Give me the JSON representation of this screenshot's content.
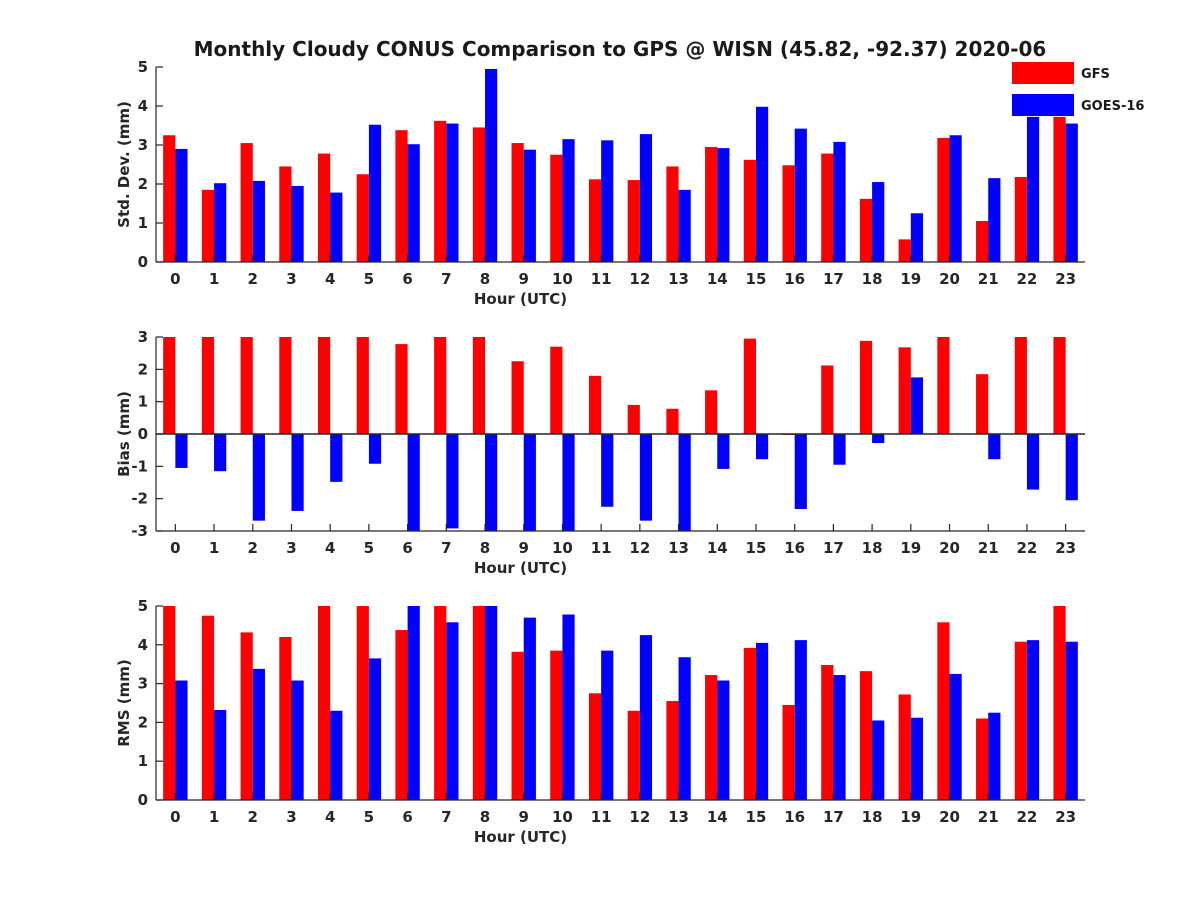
{
  "title": "Monthly Cloudy CONUS Comparison to GPS @ WISN (45.82, -92.37) 2020-06",
  "legend": [
    {
      "name": "GFS",
      "color": "#ff0000"
    },
    {
      "name": "GOES-16",
      "color": "#0000ff"
    }
  ],
  "chart_data": [
    {
      "type": "bar",
      "categories": [
        "0",
        "1",
        "2",
        "3",
        "4",
        "5",
        "6",
        "7",
        "8",
        "9",
        "10",
        "11",
        "12",
        "13",
        "14",
        "15",
        "16",
        "17",
        "18",
        "19",
        "20",
        "21",
        "22",
        "23"
      ],
      "xlabel": "Hour (UTC)",
      "ylabel": "Std. Dev. (mm)",
      "ylim": [
        0,
        5
      ],
      "yticks": [
        "0",
        "1",
        "2",
        "3",
        "4",
        "5"
      ],
      "legend": "top-right",
      "series": [
        {
          "name": "GFS",
          "color": "#ff0000",
          "values": [
            3.25,
            1.85,
            3.05,
            2.45,
            2.78,
            2.25,
            3.38,
            3.62,
            3.45,
            3.05,
            2.75,
            2.12,
            2.1,
            2.45,
            2.95,
            2.62,
            2.48,
            2.78,
            1.62,
            0.58,
            3.18,
            1.05,
            2.18,
            3.72
          ]
        },
        {
          "name": "GOES-16",
          "color": "#0000ff",
          "values": [
            2.9,
            2.02,
            2.08,
            1.95,
            1.78,
            3.52,
            3.02,
            3.55,
            4.95,
            2.88,
            3.15,
            3.12,
            3.28,
            1.85,
            2.92,
            3.98,
            3.42,
            3.08,
            2.05,
            1.25,
            3.25,
            2.15,
            3.72,
            3.55
          ]
        }
      ]
    },
    {
      "type": "bar",
      "categories": [
        "0",
        "1",
        "2",
        "3",
        "4",
        "5",
        "6",
        "7",
        "8",
        "9",
        "10",
        "11",
        "12",
        "13",
        "14",
        "15",
        "16",
        "17",
        "18",
        "19",
        "20",
        "21",
        "22",
        "23"
      ],
      "xlabel": "Hour (UTC)",
      "ylabel": "Bias (mm)",
      "ylim": [
        -3,
        3
      ],
      "yticks": [
        "-3",
        "-2",
        "-1",
        "0",
        "1",
        "2",
        "3"
      ],
      "series": [
        {
          "name": "GFS",
          "color": "#ff0000",
          "values": [
            3.0,
            3.0,
            3.0,
            3.0,
            3.0,
            3.0,
            2.78,
            3.0,
            3.0,
            2.25,
            2.7,
            1.8,
            0.9,
            0.78,
            1.35,
            2.95,
            -0.03,
            2.12,
            2.88,
            2.68,
            3.0,
            1.85,
            3.0,
            3.0
          ]
        },
        {
          "name": "GOES-16",
          "color": "#0000ff",
          "values": [
            -1.05,
            -1.15,
            -2.68,
            -2.38,
            -1.48,
            -0.92,
            -3.0,
            -2.92,
            -3.0,
            -3.0,
            -3.0,
            -2.25,
            -2.68,
            -3.0,
            -1.08,
            -0.78,
            -2.32,
            -0.95,
            -0.28,
            1.75,
            0.0,
            -0.78,
            -1.72,
            -2.05
          ]
        }
      ]
    },
    {
      "type": "bar",
      "categories": [
        "0",
        "1",
        "2",
        "3",
        "4",
        "5",
        "6",
        "7",
        "8",
        "9",
        "10",
        "11",
        "12",
        "13",
        "14",
        "15",
        "16",
        "17",
        "18",
        "19",
        "20",
        "21",
        "22",
        "23"
      ],
      "xlabel": "Hour (UTC)",
      "ylabel": "RMS (mm)",
      "ylim": [
        0,
        5
      ],
      "yticks": [
        "0",
        "1",
        "2",
        "3",
        "4",
        "5"
      ],
      "series": [
        {
          "name": "GFS",
          "color": "#ff0000",
          "values": [
            5.0,
            4.75,
            4.32,
            4.2,
            5.0,
            5.0,
            4.38,
            5.0,
            5.0,
            3.82,
            3.85,
            2.75,
            2.3,
            2.55,
            3.22,
            3.92,
            2.45,
            3.48,
            3.32,
            2.72,
            4.58,
            2.1,
            4.08,
            5.0
          ]
        },
        {
          "name": "GOES-16",
          "color": "#0000ff",
          "values": [
            3.08,
            2.32,
            3.38,
            3.08,
            2.3,
            3.65,
            5.0,
            4.58,
            5.0,
            4.7,
            4.78,
            3.85,
            4.25,
            3.68,
            3.08,
            4.05,
            4.12,
            3.22,
            2.05,
            2.12,
            3.25,
            2.25,
            4.12,
            4.08
          ]
        }
      ]
    }
  ]
}
